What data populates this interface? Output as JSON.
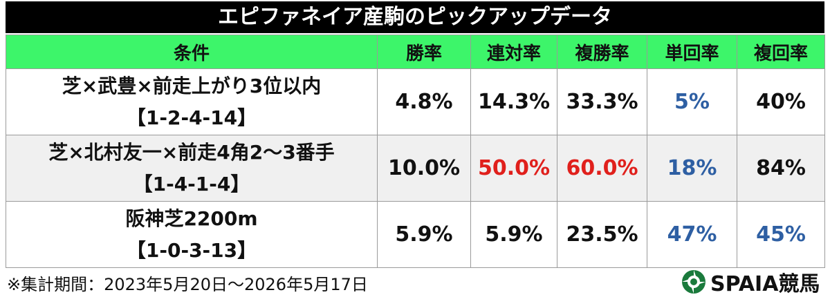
{
  "title": "エピファネイア産駒のピックアップデータ",
  "table": {
    "header": [
      "条件",
      "勝率",
      "連対率",
      "複勝率",
      "単回率",
      "複回率"
    ],
    "rows": [
      {
        "condition": [
          "芝×武豊×前走上がり3位以内",
          "【1-2-4-14】"
        ],
        "values": [
          "4.8%",
          "14.3%",
          "33.3%",
          "5%",
          "40%"
        ],
        "colors": [
          "#111111",
          "#111111",
          "#111111",
          "#2e5fa3",
          "#111111"
        ]
      },
      {
        "condition": [
          "芝×北村友一×前走4角2～3番手",
          "【1-4-1-4】"
        ],
        "values": [
          "10.0%",
          "50.0%",
          "60.0%",
          "18%",
          "84%"
        ],
        "colors": [
          "#111111",
          "#e0201c",
          "#e0201c",
          "#2e5fa3",
          "#111111"
        ]
      },
      {
        "condition": [
          "阪神芝2200m",
          "【1-0-3-13】"
        ],
        "values": [
          "5.9%",
          "5.9%",
          "23.5%",
          "47%",
          "45%"
        ],
        "colors": [
          "#111111",
          "#111111",
          "#111111",
          "#2e5fa3",
          "#2e5fa3"
        ]
      }
    ]
  },
  "footer": {
    "note": "※集計期間：2023年5月20日～2026年5月17日",
    "logo": "SPAIA競馬"
  }
}
